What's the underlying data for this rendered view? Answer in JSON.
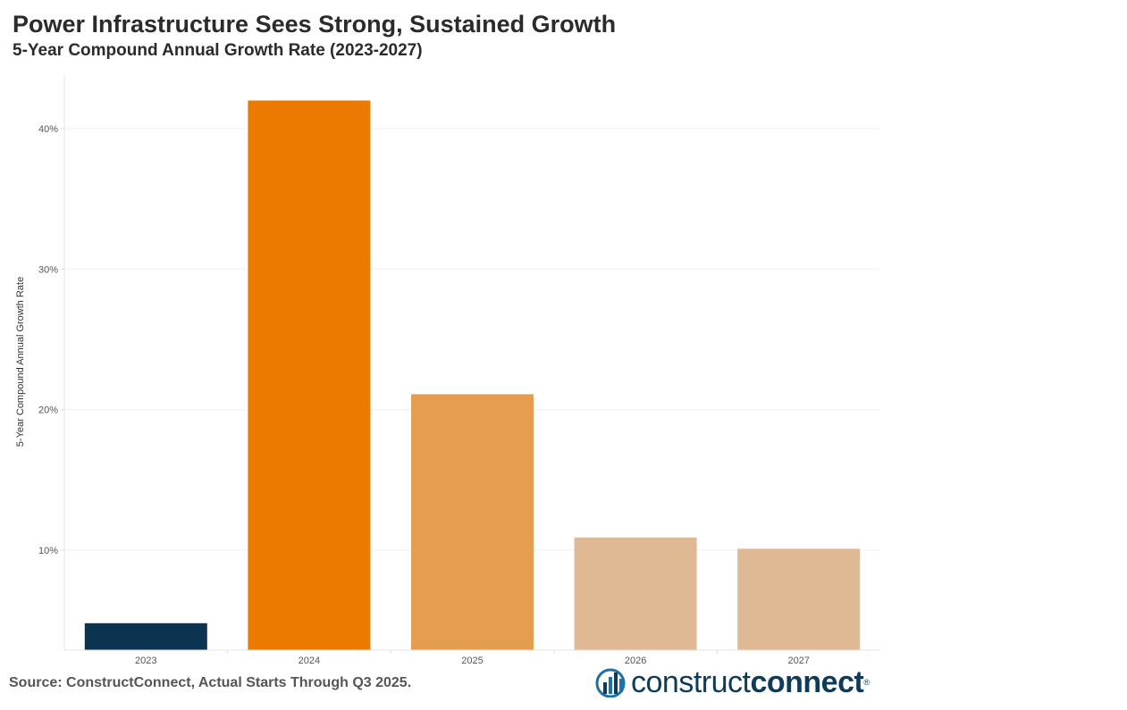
{
  "title": "Power Infrastructure Sees Strong, Sustained Growth",
  "subtitle": "5-Year Compound Annual Growth Rate (2023-2027)",
  "source": "Source: ConstructConnect, Actual Starts Through Q3 2025.",
  "logo": {
    "word1": "construct",
    "word2": "connect",
    "tm": "®",
    "icon": "bar-chart-logo-icon"
  },
  "colors": {
    "accent": "#ec7a00",
    "dark": "#0c3450"
  },
  "chart_data": {
    "type": "bar",
    "categories": [
      "2023",
      "2024",
      "2025",
      "2026",
      "2027"
    ],
    "values": [
      4.8,
      42.0,
      21.1,
      10.9,
      10.1
    ],
    "colors": [
      "#0c3450",
      "#ec7a00",
      "#e59d4f",
      "#dfb993",
      "#dfb993"
    ],
    "ylabel": "5-Year Compound Annual Growth Rate",
    "xlabel": "",
    "yticks": [
      10,
      20,
      30,
      40
    ],
    "ytick_labels": [
      "10%",
      "20%",
      "30%",
      "40%"
    ],
    "ylim": [
      3,
      44
    ],
    "grid": true,
    "legend": "none"
  }
}
